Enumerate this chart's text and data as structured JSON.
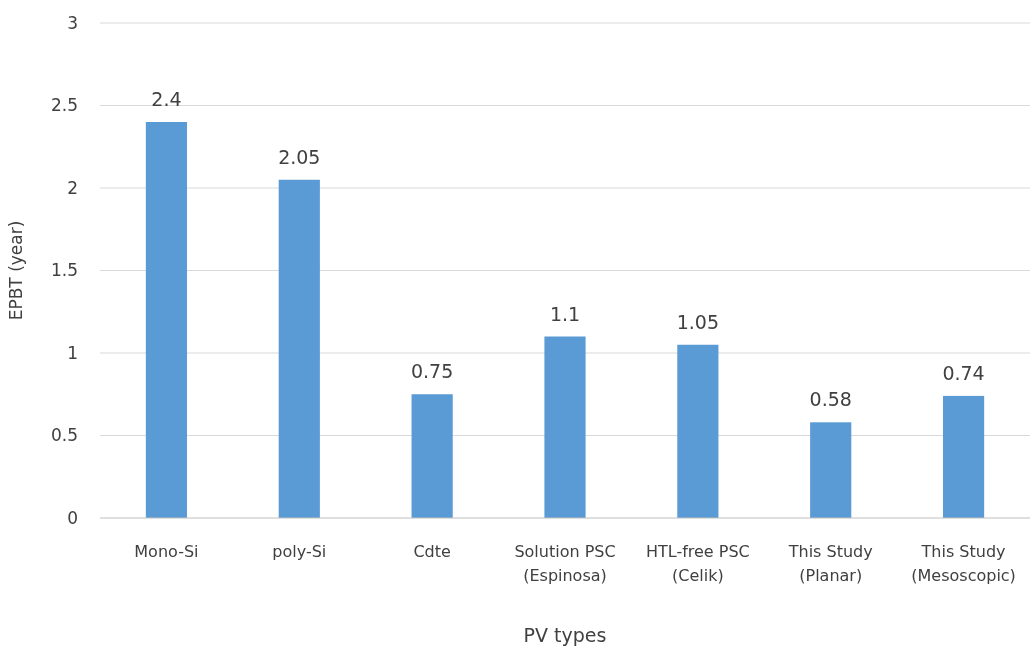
{
  "chart_data": {
    "type": "bar",
    "xlabel": "PV types",
    "ylabel": "EPBT (year)",
    "categories": [
      "Mono-Si",
      "poly-Si",
      "Cdte",
      "Solution PSC\n(Espinosa)",
      "HTL-free PSC\n(Celik)",
      "This Study\n(Planar)",
      "This Study\n(Mesoscopic)"
    ],
    "values": [
      2.4,
      2.05,
      0.75,
      1.1,
      1.05,
      0.58,
      0.74
    ],
    "color": "#5b9bd5",
    "ylim": [
      0,
      3
    ],
    "yticks": [
      0,
      0.5,
      1,
      1.5,
      2,
      2.5,
      3
    ],
    "grid": "y",
    "data_labels": true
  }
}
